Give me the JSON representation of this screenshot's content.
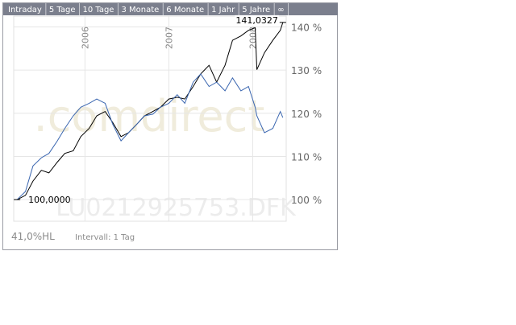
{
  "tabs": [
    "Intraday",
    "5 Tage",
    "10 Tage",
    "3 Monate",
    "6 Monate",
    "1 Jahr",
    "5 Jahre",
    "∞"
  ],
  "footer": {
    "range": "41,0%HL",
    "interval": "Intervall: 1 Tag"
  },
  "chart_data": {
    "type": "line",
    "watermark": ".comdirect",
    "symbol": "LU0212925753.DFK",
    "annotations": [
      "100,0000",
      "141,0327"
    ],
    "x": [
      2005.19,
      2005.29,
      2005.38,
      2005.48,
      2005.57,
      2005.67,
      2005.76,
      2005.86,
      2005.95,
      2006.05,
      2006.14,
      2006.24,
      2006.33,
      2006.43,
      2006.52,
      2006.62,
      2006.71,
      2006.81,
      2006.9,
      2007.0,
      2007.1,
      2007.19,
      2007.29,
      2007.38,
      2007.48,
      2007.57,
      2007.67,
      2007.76,
      2007.86,
      2007.95,
      2008.03,
      2008.05,
      2008.14,
      2008.24,
      2008.33,
      2008.36
    ],
    "series": [
      {
        "color": "#000000",
        "values": [
          100,
          101.0,
          104.3,
          106.8,
          106.2,
          108.7,
          110.7,
          111.3,
          114.6,
          116.5,
          119.4,
          120.4,
          117.9,
          114.6,
          115.5,
          117.5,
          119.4,
          120.4,
          121.4,
          123.3,
          123.7,
          123.3,
          126.2,
          129.1,
          131.1,
          127.2,
          131.1,
          136.9,
          137.9,
          139.2,
          139.8,
          130.1,
          134.0,
          136.9,
          139.2,
          141.03
        ]
      },
      {
        "color": "#3a66b0",
        "values": [
          100,
          101.9,
          107.8,
          109.7,
          110.7,
          113.6,
          116.5,
          119.4,
          121.4,
          122.3,
          123.3,
          122.3,
          117.5,
          113.6,
          115.5,
          117.5,
          119.4,
          119.8,
          121.4,
          122.3,
          124.3,
          122.3,
          127.2,
          129.1,
          126.2,
          127.2,
          125.2,
          128.2,
          125.2,
          126.2,
          121.4,
          119.4,
          115.5,
          116.5,
          120.4,
          119.0
        ]
      }
    ],
    "xlim": [
      2005.15,
      2008.4
    ],
    "xticks": [
      2006,
      2007,
      2008
    ],
    "ylim": [
      95,
      142.5
    ],
    "yticks": [
      {
        "value": 100,
        "label": "100 %"
      },
      {
        "value": 110,
        "label": "110 %"
      },
      {
        "value": 120,
        "label": "120 %"
      },
      {
        "value": 130,
        "label": "130 %"
      },
      {
        "value": 140,
        "label": "140 %"
      }
    ],
    "grid": true
  }
}
